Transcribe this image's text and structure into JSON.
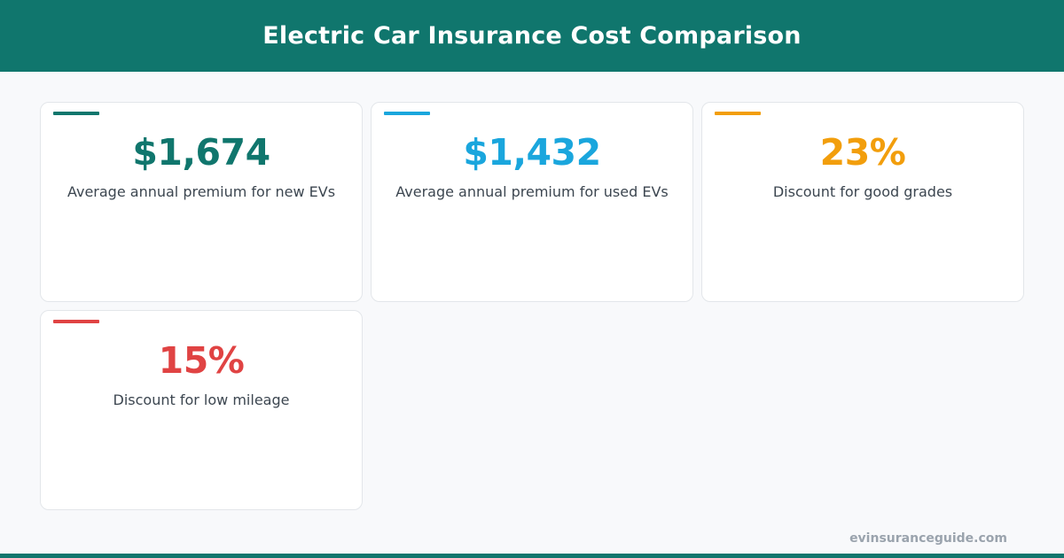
{
  "header": {
    "title": "Electric Car Insurance Cost Comparison",
    "background_color": "#10766d"
  },
  "cards": [
    {
      "value": "$1,674",
      "label": "Average annual premium for new EVs",
      "accent_color": "#10766d"
    },
    {
      "value": "$1,432",
      "label": "Average annual premium for used EVs",
      "accent_color": "#1aa6dd"
    },
    {
      "value": "23%",
      "label": "Discount for good grades",
      "accent_color": "#f29e0c"
    },
    {
      "value": "15%",
      "label": "Discount for low mileage",
      "accent_color": "#e04343"
    }
  ],
  "footer": {
    "brand": "evinsuranceguide.com",
    "bar_color": "#10766d"
  }
}
